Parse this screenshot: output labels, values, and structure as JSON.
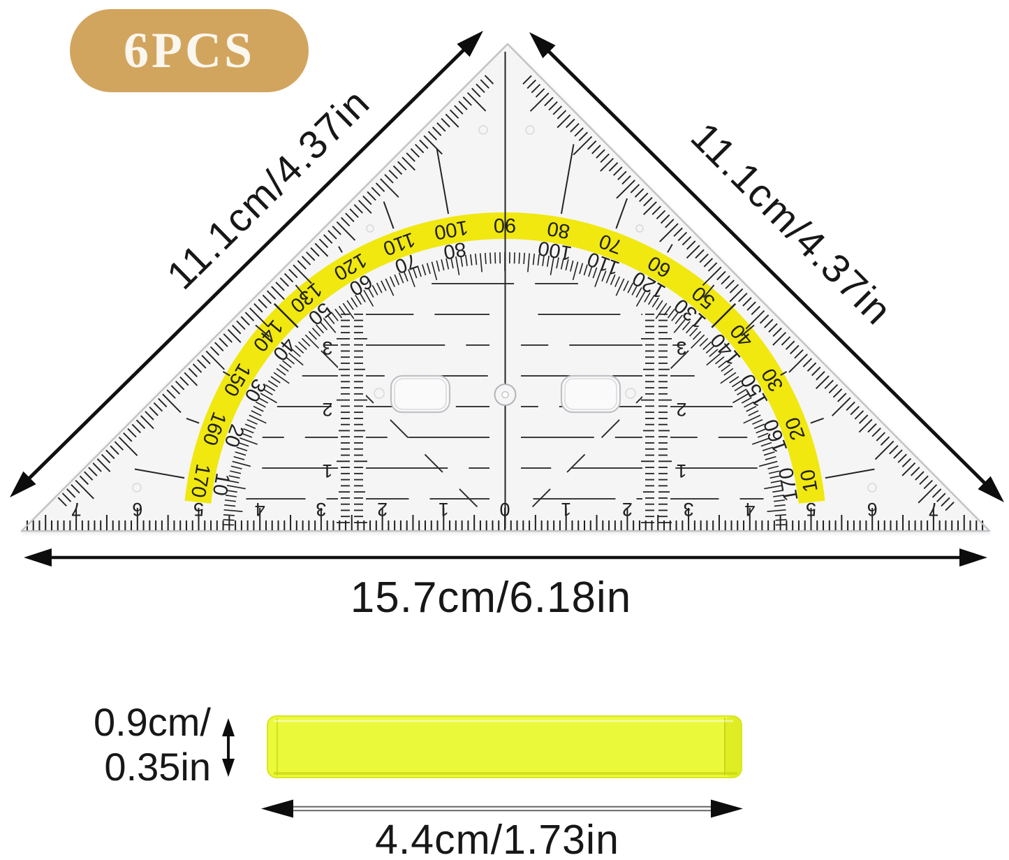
{
  "badge": {
    "label": "6PCS"
  },
  "dimension_labels": {
    "left_edge": "11.1cm/4.37in",
    "right_edge": "11.1cm/4.37in",
    "bottom_edge": "15.7cm/6.18in",
    "bar_thickness_line1": "0.9cm/",
    "bar_thickness_line2": "0.35in",
    "bar_length": "4.4cm/1.73in"
  },
  "ruler": {
    "protractor_outer_scale": [
      10,
      20,
      30,
      40,
      50,
      60,
      70,
      80,
      90,
      100,
      110,
      120,
      130,
      140,
      150,
      160,
      170
    ],
    "protractor_inner_scale": [
      10,
      20,
      30,
      40,
      50,
      60,
      70,
      80,
      100,
      110,
      120,
      130,
      140,
      150,
      160,
      170
    ],
    "protractor_degree_step": 10,
    "bottom_scale_cm": [
      7,
      6,
      5,
      4,
      3,
      2,
      1,
      0,
      1,
      2,
      3,
      4,
      5,
      6,
      7
    ],
    "vertical_scale_cm": [
      1,
      2,
      3
    ]
  },
  "colors": {
    "badge_bg": "#d2a55e",
    "badge_text": "#fbf7ee",
    "band_yellow": "#f0e80f",
    "bar_yellow": "#ebf93b",
    "bar_yellow_dark": "#d8e620",
    "ruler_body": "#f5f5f6",
    "ink": "#202020"
  }
}
